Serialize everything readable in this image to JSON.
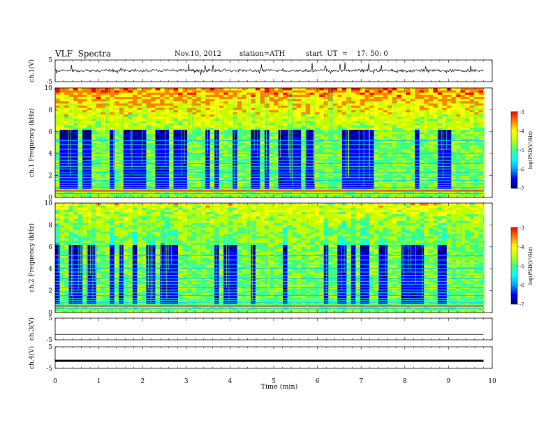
{
  "header": {
    "title": "VLF  Spectra",
    "date": "Nov.10, 2012",
    "station": "station=ATH",
    "start_ut": "start  UT  =    17: 50: 0"
  },
  "colors": {
    "spectrogram_scale": [
      "#000080",
      "#0000ff",
      "#00a0ff",
      "#00ffff",
      "#40ff80",
      "#c0ff00",
      "#ffff00",
      "#ff8000",
      "#ff0000",
      "#ffffff"
    ]
  },
  "chart_data": [
    {
      "type": "line",
      "panel": "ch1-waveform",
      "ylabel": "ch.1(V)",
      "ylim": [
        -5,
        5
      ],
      "y_ticks": [
        "5",
        "-5"
      ],
      "xlim": [
        0,
        10
      ],
      "trace_end_min": 9.8,
      "baseline_v": 0.1,
      "noise_amplitude_v": 1.2
    },
    {
      "type": "heatmap",
      "panel": "ch1-spectrogram",
      "ylabel": "ch.1 Frequency  (kHz)",
      "ylim": [
        0,
        10
      ],
      "y_ticks": [
        "10",
        "8",
        "6",
        "4",
        "2",
        "0"
      ],
      "xlim": [
        0,
        10
      ],
      "colorbar_label": "log(PSD(V²/Hz)",
      "colorbar_range": [
        -7,
        -3
      ],
      "colorbar_ticks": [
        "-3",
        "-4",
        "-5",
        "-6",
        "-7"
      ]
    },
    {
      "type": "heatmap",
      "panel": "ch2-spectrogram",
      "ylabel": "ch.2 Frequency  (kHz)",
      "ylim": [
        0,
        10
      ],
      "y_ticks": [
        "10",
        "8",
        "6",
        "4",
        "2",
        "0"
      ],
      "xlim": [
        0,
        10
      ],
      "colorbar_label": "log(PSD(V²/Hz)",
      "colorbar_range": [
        -7,
        -3
      ],
      "colorbar_ticks": [
        "-3",
        "-4",
        "-5",
        "-6",
        "-7"
      ]
    },
    {
      "type": "line",
      "panel": "ch3-waveform",
      "ylabel": "ch.3(V)",
      "ylim": [
        -5,
        5
      ],
      "y_ticks": [
        "5",
        "-5"
      ],
      "xlim": [
        0,
        10
      ],
      "baseline_v": -2.5
    },
    {
      "type": "line",
      "panel": "ch4-waveform",
      "ylabel": "ch.4(V)",
      "ylim": [
        -5,
        5
      ],
      "y_ticks": [
        "5",
        "-5"
      ],
      "xlim": [
        0,
        10
      ],
      "baseline_v": -1.5,
      "xlabel": "Time  (min)",
      "x_ticks": [
        "0",
        "1",
        "2",
        "3",
        "4",
        "5",
        "6",
        "7",
        "8",
        "9",
        "10"
      ]
    }
  ]
}
